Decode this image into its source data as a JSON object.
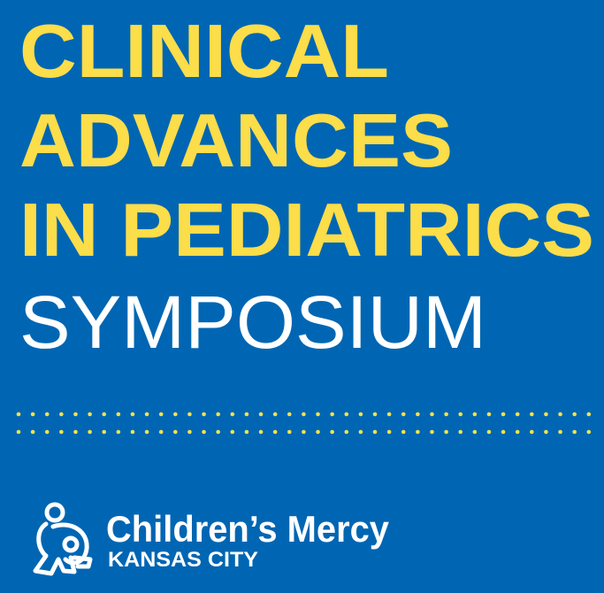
{
  "colors": {
    "background": "#0066b3",
    "title_yellow": "#fcdd4a",
    "white": "#ffffff",
    "dot_yellow": "#f3e24a"
  },
  "title": {
    "line1": "CLINICAL",
    "line2": "ADVANCES",
    "line3": "IN PEDIATRICS",
    "line4": "SYMPOSIUM"
  },
  "logo": {
    "icon": "parent-holding-child-icon",
    "name": "Children’s Mercy",
    "location": "KANSAS CITY"
  }
}
